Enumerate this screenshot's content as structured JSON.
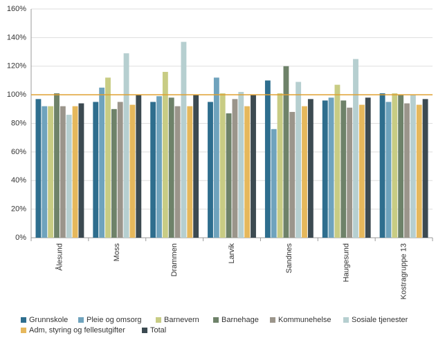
{
  "chart_data": {
    "type": "bar",
    "categories": [
      "Ålesund",
      "Moss",
      "Drammen",
      "Larvik",
      "Sandnes",
      "Haugesund",
      "Kostragruppe 13"
    ],
    "series": [
      {
        "name": "Grunnskole",
        "color": "#2e6e8e",
        "values": [
          97,
          95,
          95,
          95,
          110,
          96,
          101
        ]
      },
      {
        "name": "Pleie og omsorg",
        "color": "#6fa3bd",
        "values": [
          92,
          105,
          99,
          112,
          76,
          98,
          95
        ]
      },
      {
        "name": "Barnevern",
        "color": "#c8cc84",
        "values": [
          92,
          112,
          116,
          101,
          101,
          107,
          101
        ]
      },
      {
        "name": "Barnehage",
        "color": "#6e8269",
        "values": [
          101,
          90,
          98,
          87,
          120,
          96,
          100
        ]
      },
      {
        "name": "Kommunehelse",
        "color": "#9b958b",
        "values": [
          92,
          95,
          92,
          97,
          88,
          91,
          94
        ]
      },
      {
        "name": "Sosiale tjenester",
        "color": "#b6cfd0",
        "values": [
          86,
          129,
          137,
          102,
          109,
          125,
          100
        ]
      },
      {
        "name": "Adm, styring og fellesutgifter",
        "color": "#e6b85c",
        "values": [
          92,
          93,
          92,
          92,
          92,
          93,
          93
        ]
      },
      {
        "name": "Total",
        "color": "#3c4a51",
        "values": [
          94,
          100,
          100,
          100,
          97,
          98,
          97
        ]
      }
    ],
    "ylim": [
      0,
      160
    ],
    "yticks": [
      {
        "value": 0,
        "label": "0%"
      },
      {
        "value": 20,
        "label": "20%"
      },
      {
        "value": 40,
        "label": "40%"
      },
      {
        "value": 60,
        "label": "60%"
      },
      {
        "value": 80,
        "label": "80%"
      },
      {
        "value": 100,
        "label": "100%"
      },
      {
        "value": 120,
        "label": "120%"
      },
      {
        "value": 140,
        "label": "140%"
      },
      {
        "value": 160,
        "label": "160%"
      }
    ],
    "grid": true,
    "reference_line": {
      "value": 100,
      "color": "#e0a030"
    },
    "legend": "bottom"
  }
}
